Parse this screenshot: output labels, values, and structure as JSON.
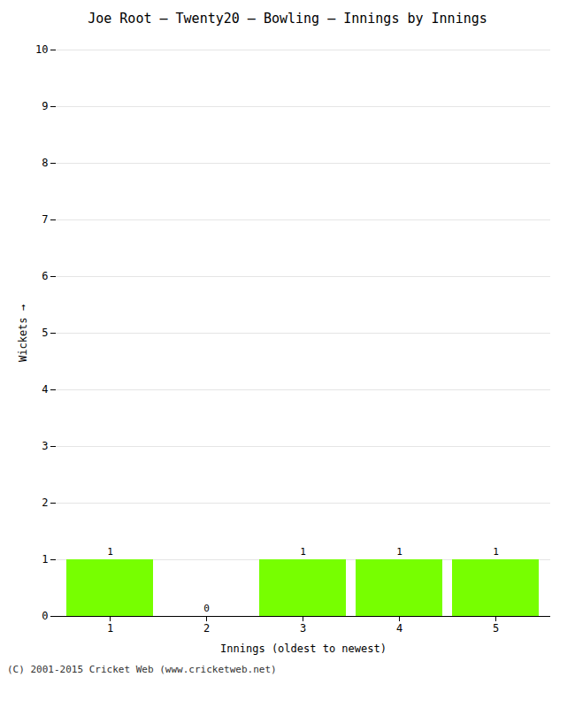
{
  "chart_data": {
    "type": "bar",
    "title": "Joe Root – Twenty20 – Bowling – Innings by Innings",
    "xlabel": "Innings (oldest to newest)",
    "ylabel": "Wickets",
    "categories": [
      1,
      2,
      3,
      4,
      5
    ],
    "values": [
      1,
      0,
      1,
      1,
      1
    ],
    "color": "#77ff00",
    "ylim": [
      0,
      10
    ],
    "yticks": [
      0,
      1,
      2,
      3,
      4,
      5,
      6,
      7,
      8,
      9,
      10
    ],
    "grid": true,
    "data_labels": true,
    "annotations": [
      "(C) 2001-2015 Cricket Web (www.cricketweb.net)"
    ]
  }
}
